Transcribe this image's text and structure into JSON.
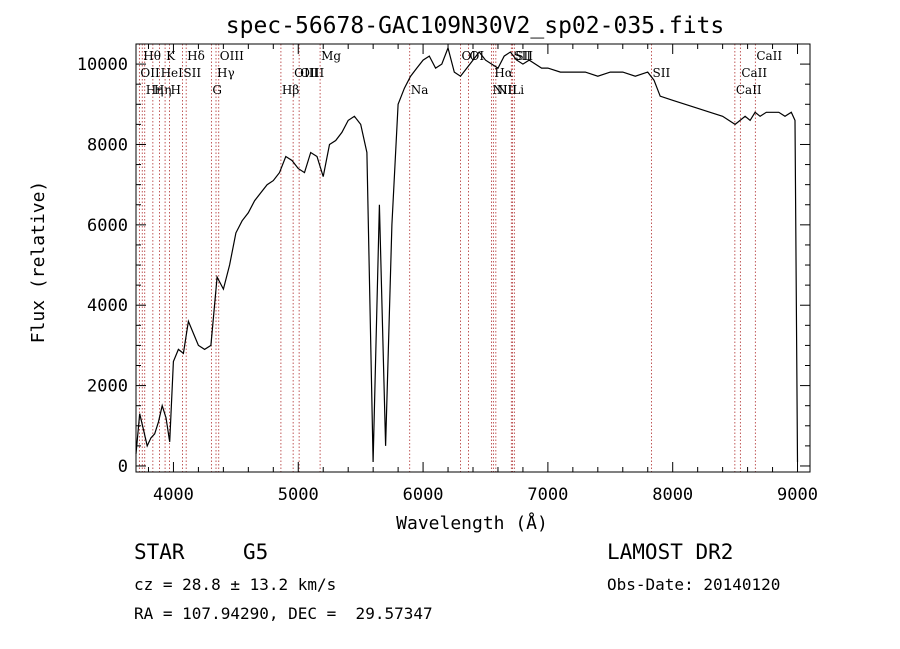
{
  "chart_data": {
    "type": "line",
    "title": "spec-56678-GAC109N30V2_sp02-035.fits",
    "xlabel": "Wavelength (Å)",
    "ylabel": "Flux (relative)",
    "xlim": [
      3700,
      9100
    ],
    "ylim": [
      -150,
      10500
    ],
    "x_ticks": [
      4000,
      5000,
      6000,
      7000,
      8000,
      9000
    ],
    "y_ticks": [
      0,
      2000,
      4000,
      6000,
      8000,
      10000
    ],
    "x_tick_labels": [
      "4000",
      "5000",
      "6000",
      "7000",
      "8000",
      "9000"
    ],
    "y_tick_labels": [
      "0",
      "2000",
      "4000",
      "6000",
      "8000",
      "10000"
    ],
    "line_color": "#000000",
    "marker_color": "#b03030",
    "series": [
      {
        "x": [
          3700,
          3730,
          3760,
          3790,
          3820,
          3850,
          3880,
          3910,
          3940,
          3970,
          4000,
          4040,
          4080,
          4120,
          4160,
          4200,
          4250,
          4300,
          4350,
          4400,
          4450,
          4500,
          4550,
          4600,
          4650,
          4700,
          4750,
          4800,
          4850,
          4900,
          4950,
          5000,
          5050,
          5100,
          5150,
          5200,
          5250,
          5300,
          5350,
          5400,
          5450,
          5500,
          5550,
          5600,
          5650,
          5700,
          5750,
          5800,
          5850,
          5900,
          5950,
          6000,
          6050,
          6100,
          6150,
          6200,
          6250,
          6300,
          6350,
          6400,
          6450,
          6500,
          6550,
          6600,
          6650,
          6700,
          6750,
          6800,
          6850,
          6900,
          6950,
          7000,
          7100,
          7200,
          7300,
          7400,
          7500,
          7600,
          7700,
          7800,
          7850,
          7900,
          8000,
          8100,
          8200,
          8300,
          8400,
          8450,
          8500,
          8540,
          8580,
          8620,
          8660,
          8700,
          8750,
          8800,
          8850,
          8900,
          8950,
          8980,
          9000
        ],
        "y": [
          300,
          1300,
          900,
          500,
          700,
          800,
          1100,
          1500,
          1200,
          600,
          2600,
          2900,
          2800,
          3600,
          3300,
          3000,
          2900,
          3000,
          4700,
          4400,
          5000,
          5800,
          6100,
          6300,
          6600,
          6800,
          7000,
          7100,
          7300,
          7700,
          7600,
          7400,
          7300,
          7800,
          7700,
          7200,
          8000,
          8100,
          8300,
          8600,
          8700,
          8500,
          7800,
          100,
          6500,
          500,
          6000,
          9000,
          9400,
          9700,
          9900,
          10100,
          10200,
          9900,
          10000,
          10400,
          9800,
          9700,
          9900,
          10100,
          10300,
          10100,
          10000,
          9900,
          10200,
          10300,
          10100,
          10000,
          10100,
          10000,
          9900,
          9900,
          9800,
          9800,
          9800,
          9700,
          9800,
          9800,
          9700,
          9800,
          9600,
          9200,
          9100,
          9000,
          8900,
          8800,
          8700,
          8600,
          8500,
          8600,
          8700,
          8600,
          8800,
          8700,
          8800,
          8800,
          8800,
          8700,
          8800,
          8600,
          100
        ]
      }
    ],
    "lines_markers": [
      {
        "x": 3727,
        "label": "OII",
        "row": 1
      },
      {
        "x": 3750,
        "label": "Hθ",
        "row": 0
      },
      {
        "x": 3770,
        "label": "Hη",
        "row": 2
      },
      {
        "x": 3835,
        "label": "Hη",
        "row": 2
      },
      {
        "x": 3889,
        "label": "HeI",
        "row": 1
      },
      {
        "x": 3933,
        "label": "K",
        "row": 0
      },
      {
        "x": 3968,
        "label": "H",
        "row": 2
      },
      {
        "x": 4072,
        "label": "SII",
        "row": 1
      },
      {
        "x": 4102,
        "label": "Hδ",
        "row": 0
      },
      {
        "x": 4304,
        "label": "G",
        "row": 2
      },
      {
        "x": 4341,
        "label": "Hγ",
        "row": 1
      },
      {
        "x": 4363,
        "label": "OIII",
        "row": 0
      },
      {
        "x": 4861,
        "label": "Hβ",
        "row": 2
      },
      {
        "x": 4959,
        "label": "OIII",
        "row": 1
      },
      {
        "x": 5007,
        "label": "OIII",
        "row": 1
      },
      {
        "x": 5175,
        "label": "Mg",
        "row": 0
      },
      {
        "x": 5893,
        "label": "Na",
        "row": 2
      },
      {
        "x": 6300,
        "label": "OI",
        "row": 0
      },
      {
        "x": 6364,
        "label": "OI",
        "row": 0
      },
      {
        "x": 6548,
        "label": "NII",
        "row": 2
      },
      {
        "x": 6563,
        "label": "Hα",
        "row": 1
      },
      {
        "x": 6583,
        "label": "NII",
        "row": 2
      },
      {
        "x": 6707,
        "label": "Li",
        "row": 2
      },
      {
        "x": 6716,
        "label": "SII",
        "row": 0
      },
      {
        "x": 6731,
        "label": "SII",
        "row": 0
      },
      {
        "x": 7830,
        "label": "SII",
        "row": 1
      },
      {
        "x": 8498,
        "label": "CaII",
        "row": 2
      },
      {
        "x": 8542,
        "label": "CaII",
        "row": 1
      },
      {
        "x": 8662,
        "label": "CaII",
        "row": 0
      }
    ]
  },
  "info": {
    "class_label": "STAR",
    "subclass_label": "G5",
    "survey": "LAMOST DR2",
    "cz": "cz = 28.8 ± 13.2 km/s",
    "obs_date": "Obs-Date: 20140120",
    "radec": "RA = 107.94290, DEC =  29.57347"
  }
}
